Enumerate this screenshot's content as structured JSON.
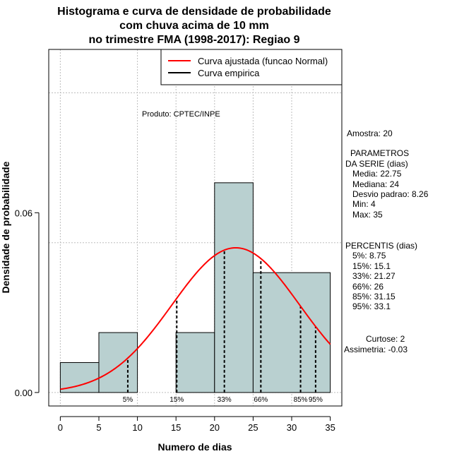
{
  "chart_data": {
    "type": "bar",
    "title_lines": [
      "Histograma e curva de densidade de probabilidade",
      "com chuva acima de 10 mm",
      "no trimestre FMA (1998-2017): Regiao 9"
    ],
    "xlabel": "Numero de dias",
    "ylabel": "Densidade de probabilidade",
    "xlim": [
      -1.5,
      36.5
    ],
    "ylim": [
      -0.0045,
      0.1145
    ],
    "x_ticks": [
      0,
      5,
      10,
      15,
      20,
      25,
      30,
      35
    ],
    "x_tick_labels": [
      "0",
      "5",
      "10",
      "15",
      "20",
      "25",
      "30",
      "35"
    ],
    "y_ticks": [
      0.0,
      0.06
    ],
    "y_tick_labels": [
      "0.00",
      "0.06"
    ],
    "grid_x": [
      0,
      10,
      15,
      20,
      25,
      30
    ],
    "grid_y": [
      0.0,
      0.05,
      0.1
    ],
    "bins": [
      {
        "x0": 0,
        "x1": 5,
        "density": 0.01
      },
      {
        "x0": 5,
        "x1": 10,
        "density": 0.02
      },
      {
        "x0": 10,
        "x1": 15,
        "density": 0.0
      },
      {
        "x0": 15,
        "x1": 20,
        "density": 0.02
      },
      {
        "x0": 20,
        "x1": 25,
        "density": 0.07
      },
      {
        "x0": 25,
        "x1": 35,
        "density": 0.04
      }
    ],
    "bar_color": "#b9d0d0",
    "normal_curve": {
      "mean": 22.75,
      "sd": 8.26,
      "x_from": 0,
      "x_to": 35,
      "color": "#ff0000"
    },
    "percentile_lines": [
      {
        "x": 8.75,
        "label": "5%"
      },
      {
        "x": 15.1,
        "label": "15%"
      },
      {
        "x": 21.27,
        "label": "33%"
      },
      {
        "x": 26,
        "label": "66%"
      },
      {
        "x": 31.15,
        "label": "85%"
      },
      {
        "x": 33.1,
        "label": "95%"
      }
    ],
    "legend": [
      {
        "label": "Curva ajustada (funcao Normal)",
        "color": "#ff0000"
      },
      {
        "label": "Curva empirica",
        "color": "#000000"
      }
    ],
    "product_note": "Produto: CPTEC/INPE"
  },
  "stats": {
    "amostra": "Amostra: 20",
    "parametros_title": "PARAMETROS",
    "parametros_sub": "DA SERIE (dias)",
    "media": "Media: 22.75",
    "mediana": "Mediana: 24",
    "desvio": "Desvio padrao: 8.26",
    "min": "Min: 4",
    "max": "Max: 35",
    "percentis_title": "PERCENTIS (dias)",
    "p5": "5%: 8.75",
    "p15": "15%: 15.1",
    "p33": "33%: 21.27",
    "p66": "66%: 26",
    "p85": "85%: 31.15",
    "p95": "95%: 33.1",
    "curtose": "Curtose: 2",
    "assimetria": "Assimetria: -0.03"
  }
}
